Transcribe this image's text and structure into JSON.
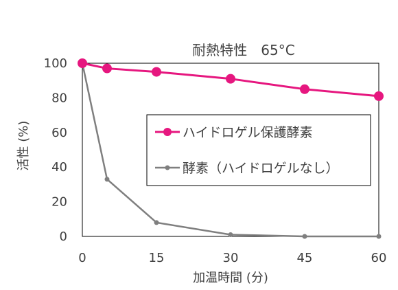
{
  "chart_data": {
    "type": "line",
    "title": "耐熱特性　65°C",
    "xlabel": "加温時間 (分)",
    "ylabel": "活性 (%)",
    "x": [
      0,
      5,
      15,
      30,
      45,
      60
    ],
    "xticks": [
      0,
      15,
      30,
      45,
      60
    ],
    "xlim": [
      0,
      60
    ],
    "yticks": [
      0,
      20,
      40,
      60,
      80,
      100
    ],
    "ylim": [
      0,
      100
    ],
    "grid": false,
    "legend_position": "center-right",
    "series": [
      {
        "name": "ハイドロゲル保護酵素",
        "color": "#E6177F",
        "marker": "circle-large",
        "values": [
          100,
          97,
          95,
          91,
          85,
          81
        ]
      },
      {
        "name": "酵素（ハイドロゲルなし）",
        "color": "#7F7F7F",
        "marker": "circle-small",
        "values": [
          100,
          33,
          8,
          1,
          0,
          0
        ]
      }
    ]
  }
}
